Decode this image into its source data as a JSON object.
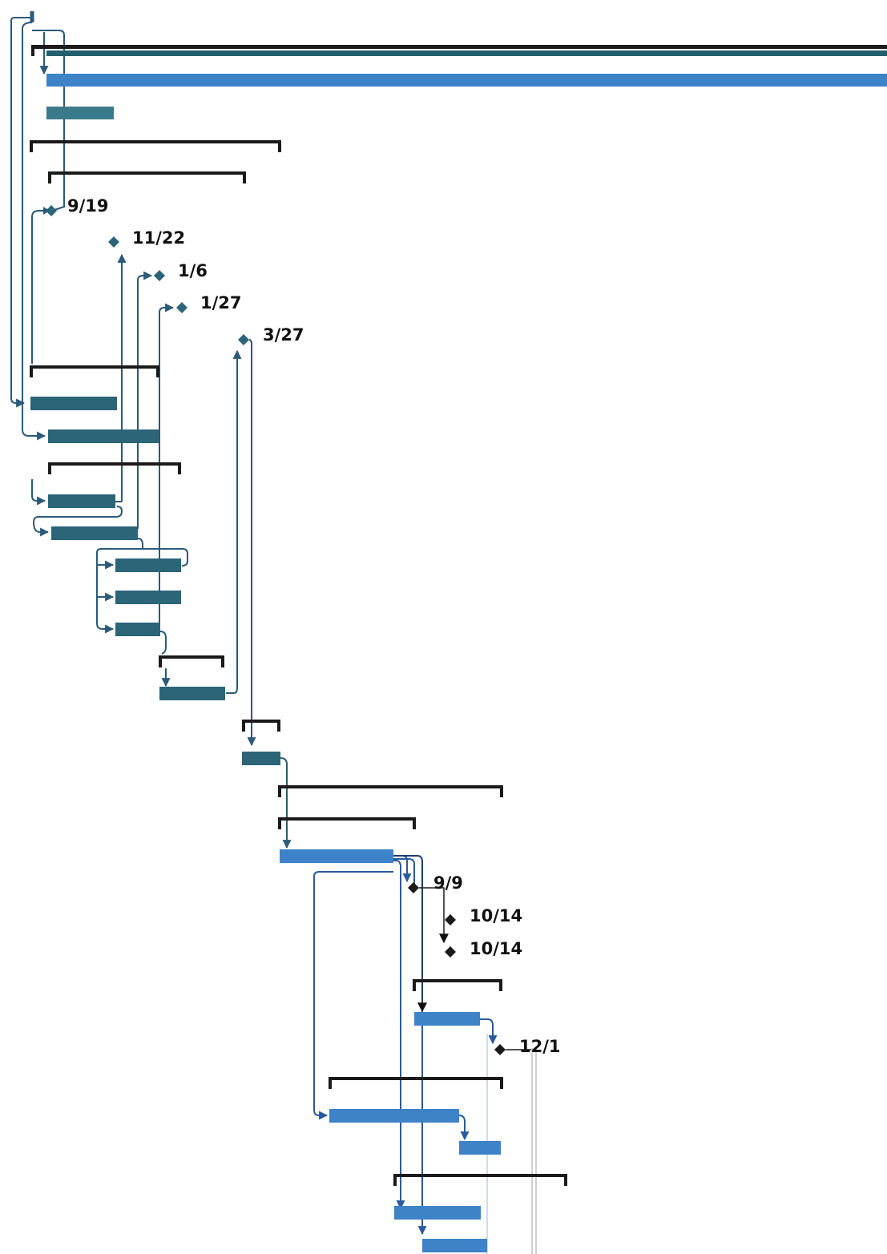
{
  "chart_data": {
    "type": "gantt",
    "colors": {
      "task_dark": "#2c6478",
      "task_light": "#3e82c8",
      "summary": "#1a1a1a",
      "link_dark": "#2c5a78",
      "link_light": "#2a5a9c",
      "milestone": "#1a1a1a"
    },
    "milestones": [
      {
        "label": "9/19"
      },
      {
        "label": "11/22"
      },
      {
        "label": "1/6"
      },
      {
        "label": "1/27"
      },
      {
        "label": "3/27"
      },
      {
        "label": "9/9"
      },
      {
        "label": "10/14"
      },
      {
        "label": "10/14"
      },
      {
        "label": "12/1"
      }
    ]
  }
}
